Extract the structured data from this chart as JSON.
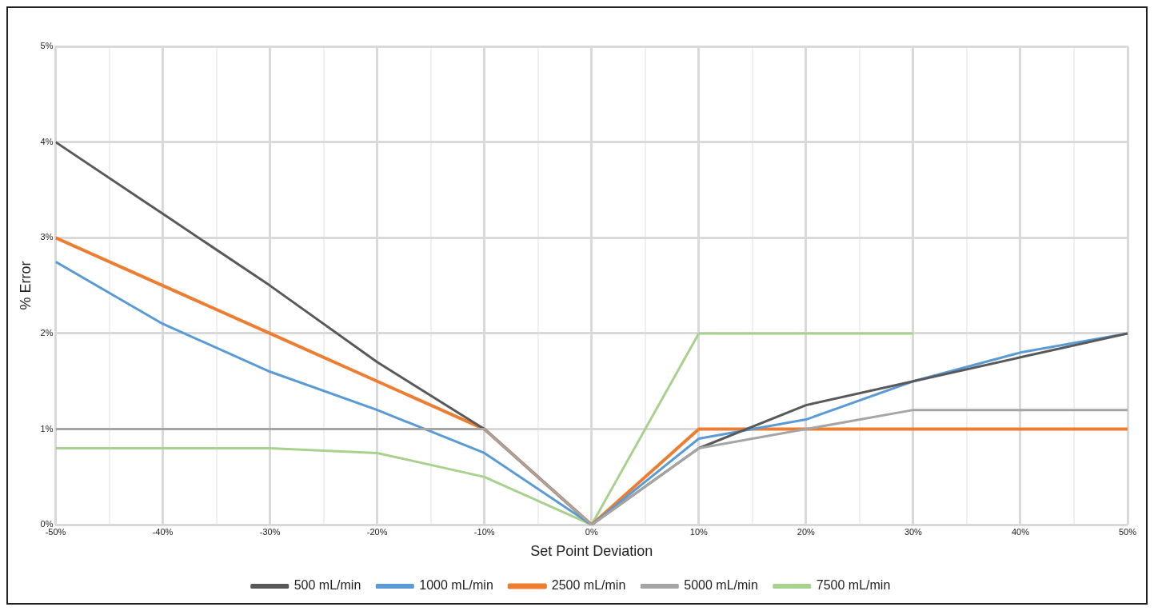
{
  "chart_data": {
    "type": "line",
    "xlabel": "Set Point Deviation",
    "ylabel": "% Error",
    "x": [
      -50,
      -40,
      -30,
      -20,
      -10,
      0,
      10,
      20,
      30,
      40,
      50
    ],
    "series": [
      {
        "name": "500 mL/min",
        "color": "#595959",
        "values": [
          4,
          3.25,
          2.5,
          1.7,
          1,
          0,
          0.8,
          1.25,
          1.5,
          1.75,
          2
        ]
      },
      {
        "name": "1000 mL/min",
        "color": "#5b9bd5",
        "values": [
          2.75,
          2.1,
          1.6,
          1.2,
          0.75,
          0,
          0.9,
          1.1,
          1.5,
          1.8,
          2
        ]
      },
      {
        "name": "2500 mL/min",
        "color": "#ed7d31",
        "values": [
          3,
          2.5,
          2,
          1.5,
          1,
          0,
          1,
          1,
          1,
          1,
          1
        ]
      },
      {
        "name": "5000 mL/min",
        "color": "#a5a5a5",
        "values": [
          1,
          1,
          1,
          1,
          1,
          0,
          0.8,
          1,
          1.2,
          1.2,
          1.2
        ]
      },
      {
        "name": "7500 mL/min",
        "color": "#a9d18e",
        "values": [
          0.8,
          0.8,
          0.8,
          0.75,
          0.5,
          0,
          2,
          2,
          2,
          null,
          null
        ]
      }
    ],
    "xlim": [
      -50,
      50
    ],
    "xticks": [
      {
        "value": -50,
        "label": "-50%"
      },
      {
        "value": -45,
        "label": null
      },
      {
        "value": -40,
        "label": "-40%"
      },
      {
        "value": -35,
        "label": null
      },
      {
        "value": -30,
        "label": "-30%"
      },
      {
        "value": -25,
        "label": null
      },
      {
        "value": -20,
        "label": "-20%"
      },
      {
        "value": -15,
        "label": null
      },
      {
        "value": -10,
        "label": "-10%"
      },
      {
        "value": -5,
        "label": null
      },
      {
        "value": 0,
        "label": "0%"
      },
      {
        "value": 5,
        "label": null
      },
      {
        "value": 10,
        "label": "10%"
      },
      {
        "value": 15,
        "label": null
      },
      {
        "value": 20,
        "label": "20%"
      },
      {
        "value": 25,
        "label": null
      },
      {
        "value": 30,
        "label": "30%"
      },
      {
        "value": 35,
        "label": null
      },
      {
        "value": 40,
        "label": "40%"
      },
      {
        "value": 45,
        "label": null
      },
      {
        "value": 50,
        "label": "50%"
      }
    ],
    "ylim": [
      0,
      5
    ],
    "yticks": [
      {
        "value": 0,
        "label": "0%"
      },
      {
        "value": 1,
        "label": "1%"
      },
      {
        "value": 2,
        "label": "2%"
      },
      {
        "value": 3,
        "label": "3%"
      },
      {
        "value": 4,
        "label": "4%"
      },
      {
        "value": 5,
        "label": "5%"
      }
    ],
    "grid": true,
    "legend": "bottom",
    "marker": "none",
    "line_style": "solid"
  }
}
